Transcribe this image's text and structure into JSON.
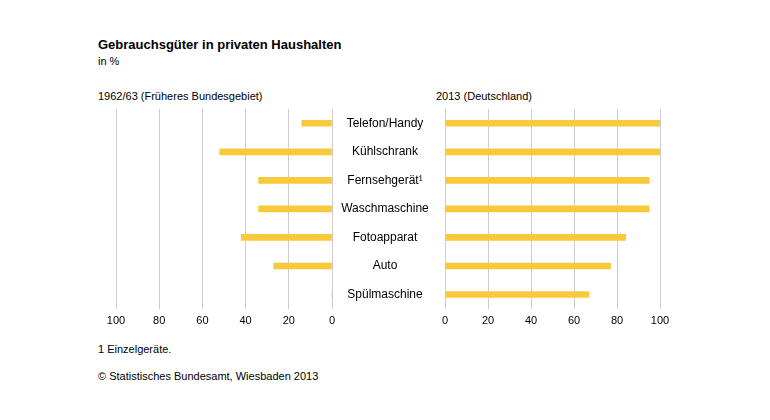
{
  "title": "Gebrauchsgüter in privaten Haushalten",
  "subtitle": "in %",
  "footnote": "1 Einzelgeräte.",
  "source": "© Statistisches Bundesamt, Wiesbaden 2013",
  "chart_data": [
    {
      "type": "bar",
      "orientation": "horizontal",
      "title": "1962/63 (Früheres Bundesgebiet)",
      "categories": [
        "Telefon/Handy",
        "Kühlschrank",
        "Fernsehgerät¹",
        "Waschmaschine",
        "Fotoapparat",
        "Auto",
        "Spülmaschine"
      ],
      "values": [
        14,
        52,
        34,
        34,
        42,
        27,
        0
      ],
      "color": "#f9c93c",
      "xlim": [
        100,
        0
      ],
      "xticks": [
        100,
        80,
        60,
        40,
        20,
        0
      ],
      "grid": true
    },
    {
      "type": "bar",
      "orientation": "horizontal",
      "title": "2013 (Deutschland)",
      "categories": [
        "Telefon/Handy",
        "Kühlschrank",
        "Fernsehgerät¹",
        "Waschmaschine",
        "Fotoapparat",
        "Auto",
        "Spülmaschine"
      ],
      "values": [
        100,
        100,
        95,
        95,
        84,
        77,
        67
      ],
      "color": "#f9c93c",
      "xlim": [
        0,
        100
      ],
      "xticks": [
        0,
        20,
        40,
        60,
        80,
        100
      ],
      "grid": true
    }
  ]
}
